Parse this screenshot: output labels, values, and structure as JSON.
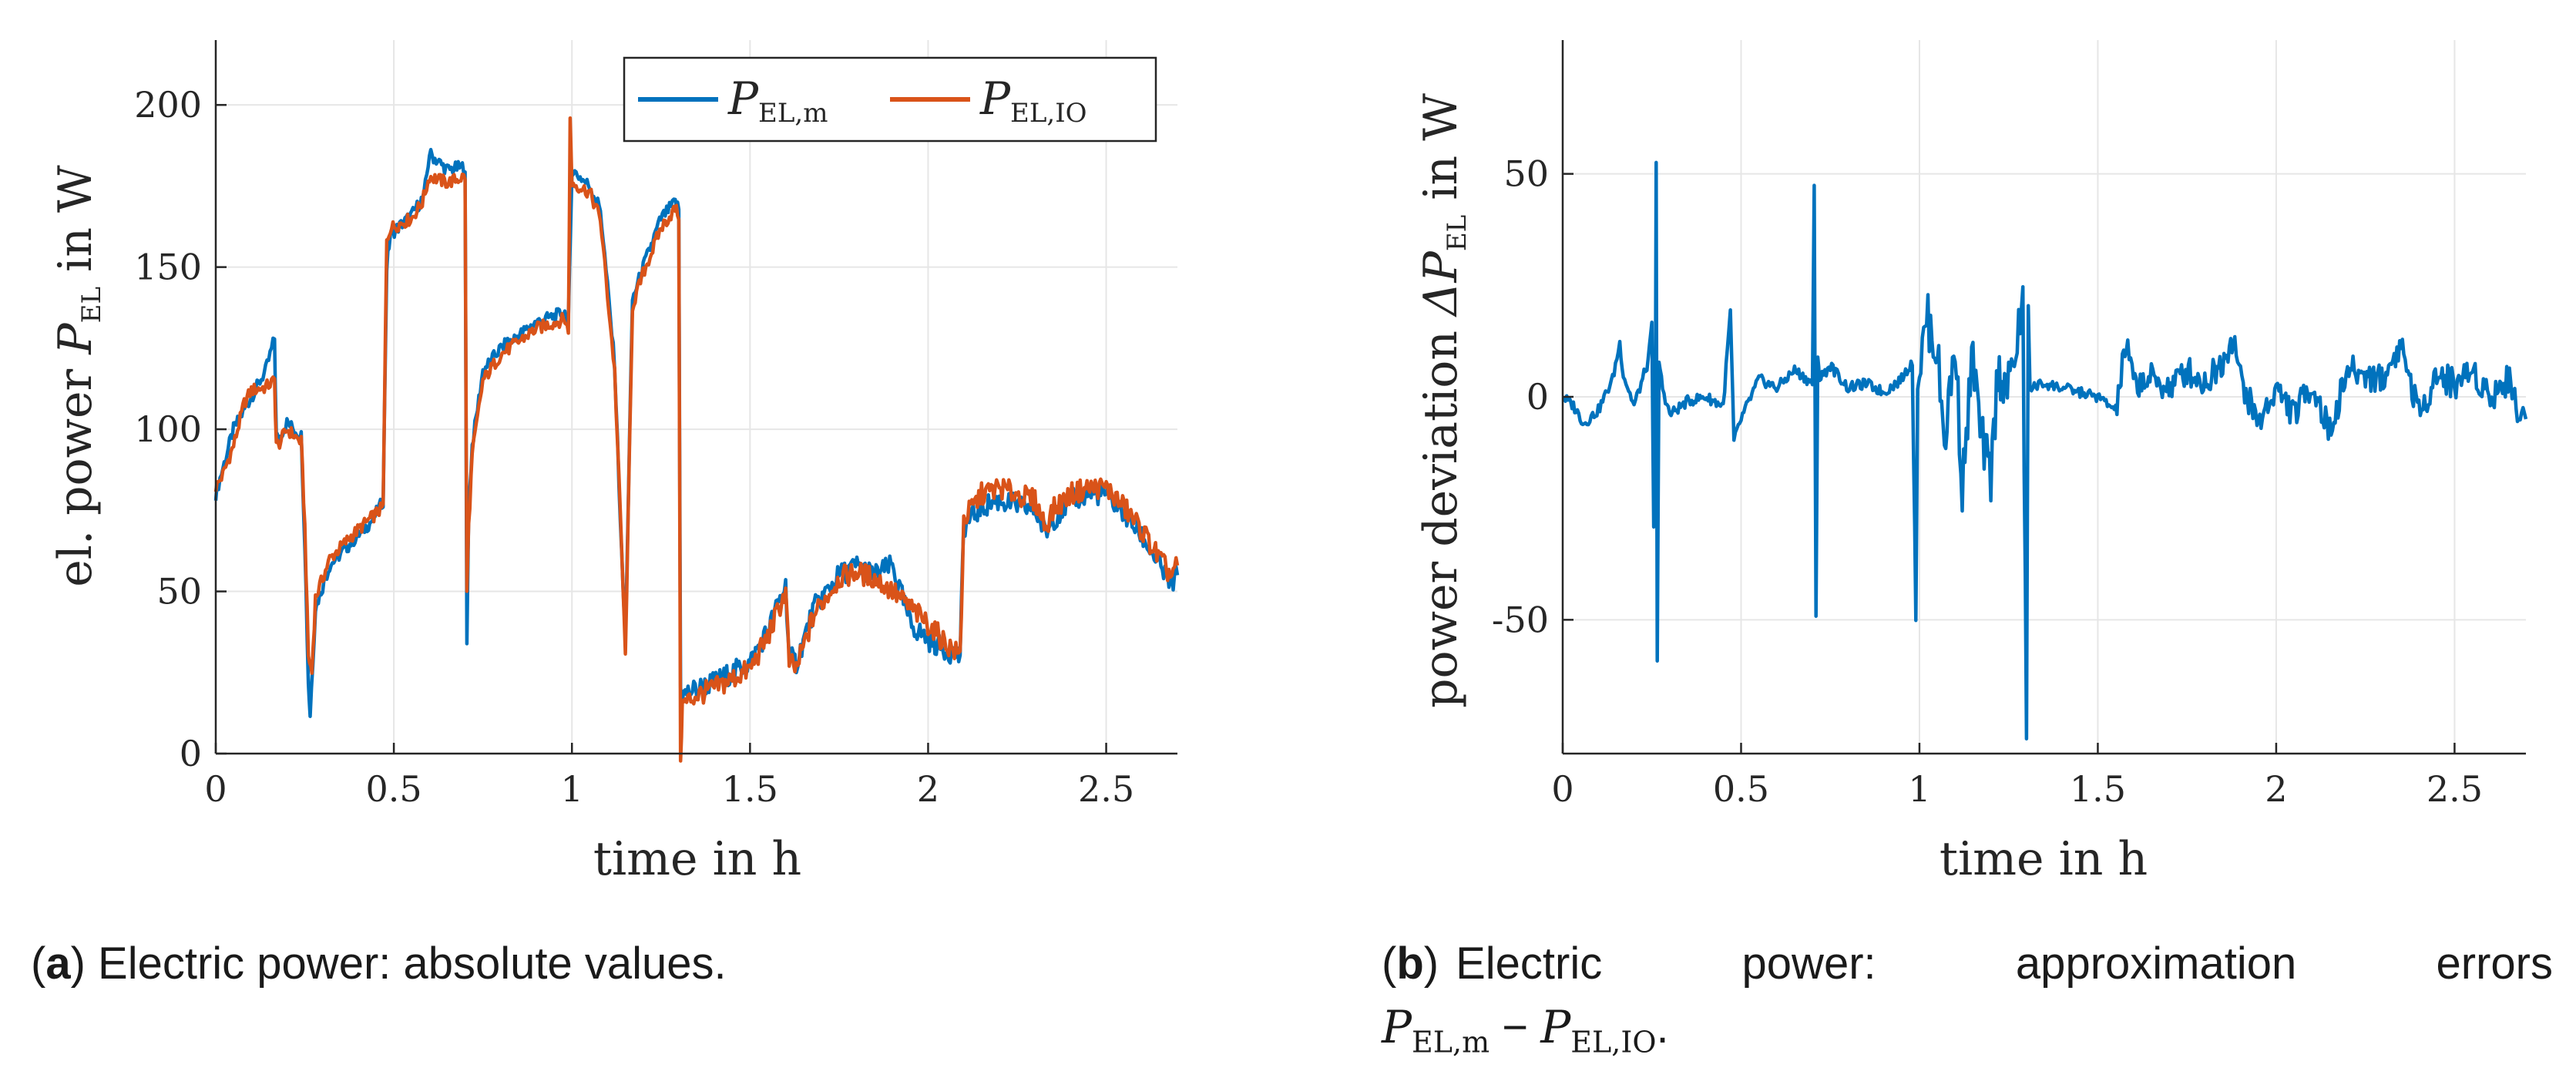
{
  "chart_data": [
    {
      "panel": "a",
      "type": "line",
      "xlabel": "time in h",
      "ylabel_text": "el. power",
      "ylabel_symbol": "P",
      "ylabel_sub": "EL",
      "ylabel_unit": "in W",
      "xlim": [
        0,
        2.7
      ],
      "ylim": [
        0,
        220
      ],
      "xticks": [
        0,
        0.5,
        1,
        1.5,
        2,
        2.5
      ],
      "xtick_labels": [
        "0",
        "0.5",
        "1",
        "1.5",
        "2",
        "2.5"
      ],
      "yticks": [
        0,
        50,
        100,
        150,
        200
      ],
      "ytick_labels": [
        "0",
        "50",
        "100",
        "150",
        "200"
      ],
      "grid": true,
      "legend_location": "top-right",
      "series": [
        {
          "name_symbol": "P",
          "name_sub": "EL,m",
          "color": "#0072BD",
          "x": [
            0,
            0.02,
            0.05,
            0.1,
            0.14,
            0.165,
            0.17,
            0.175,
            0.2,
            0.24,
            0.25,
            0.26,
            0.265,
            0.28,
            0.32,
            0.38,
            0.44,
            0.47,
            0.48,
            0.49,
            0.55,
            0.585,
            0.6,
            0.65,
            0.7,
            0.705,
            0.71,
            0.72,
            0.75,
            0.8,
            0.9,
            0.98,
            0.99,
            1.0,
            1.05,
            1.08,
            1.12,
            1.14,
            1.15,
            1.17,
            1.2,
            1.25,
            1.29,
            1.3,
            1.305,
            1.31,
            1.35,
            1.4,
            1.5,
            1.55,
            1.6,
            1.61,
            1.63,
            1.68,
            1.75,
            1.8,
            1.85,
            1.9,
            1.95,
            2.0,
            2.05,
            2.09,
            2.1,
            2.15,
            2.2,
            2.3,
            2.33,
            2.35,
            2.4,
            2.45,
            2.5,
            2.55,
            2.6,
            2.65,
            2.68,
            2.7
          ],
          "y": [
            80,
            88,
            100,
            110,
            118,
            128,
            98,
            97,
            102,
            98,
            65,
            22,
            12,
            45,
            58,
            65,
            72,
            78,
            150,
            160,
            166,
            172,
            185,
            180,
            181,
            33,
            75,
            95,
            118,
            125,
            133,
            136,
            132,
            180,
            175,
            168,
            120,
            60,
            35,
            140,
            150,
            165,
            170,
            168,
            20,
            18,
            20,
            22,
            28,
            38,
            52,
            30,
            28,
            45,
            55,
            58,
            55,
            58,
            40,
            35,
            32,
            30,
            70,
            76,
            78,
            75,
            68,
            72,
            78,
            80,
            80,
            74,
            67,
            58,
            52,
            55
          ]
        },
        {
          "name_symbol": "P",
          "name_sub": "EL,IO",
          "color": "#D95319",
          "x": [
            0,
            0.02,
            0.05,
            0.08,
            0.1,
            0.14,
            0.165,
            0.17,
            0.175,
            0.2,
            0.24,
            0.25,
            0.26,
            0.27,
            0.28,
            0.32,
            0.38,
            0.44,
            0.47,
            0.48,
            0.49,
            0.55,
            0.58,
            0.6,
            0.65,
            0.7,
            0.705,
            0.71,
            0.72,
            0.75,
            0.8,
            0.9,
            0.98,
            0.99,
            0.995,
            1.0,
            1.05,
            1.08,
            1.12,
            1.14,
            1.15,
            1.17,
            1.2,
            1.25,
            1.29,
            1.3,
            1.305,
            1.31,
            1.35,
            1.4,
            1.5,
            1.55,
            1.6,
            1.61,
            1.63,
            1.68,
            1.75,
            1.8,
            1.85,
            1.9,
            1.95,
            2.0,
            2.05,
            2.09,
            2.1,
            2.15,
            2.2,
            2.3,
            2.33,
            2.35,
            2.4,
            2.45,
            2.5,
            2.55,
            2.6,
            2.65,
            2.68,
            2.7
          ],
          "y": [
            82,
            86,
            95,
            108,
            112,
            113,
            115,
            96,
            95,
            100,
            96,
            70,
            30,
            25,
            48,
            60,
            67,
            73,
            76,
            158,
            162,
            165,
            170,
            178,
            176,
            178,
            50,
            70,
            92,
            115,
            123,
            131,
            134,
            130,
            195,
            176,
            173,
            165,
            118,
            62,
            30,
            138,
            148,
            162,
            168,
            166,
            0,
            15,
            18,
            20,
            26,
            36,
            50,
            28,
            26,
            43,
            54,
            56,
            54,
            50,
            45,
            40,
            34,
            30,
            72,
            80,
            82,
            78,
            70,
            75,
            80,
            82,
            82,
            76,
            69,
            60,
            55,
            58
          ]
        }
      ]
    },
    {
      "panel": "b",
      "type": "line",
      "xlabel": "time in h",
      "ylabel_text": "power deviation",
      "ylabel_symbol": "ΔP",
      "ylabel_sub": "EL",
      "ylabel_unit": "in W",
      "xlim": [
        0,
        2.7
      ],
      "ylim": [
        -80,
        80
      ],
      "xticks": [
        0,
        0.5,
        1,
        1.5,
        2,
        2.5
      ],
      "xtick_labels": [
        "0",
        "0.5",
        "1",
        "1.5",
        "2",
        "2.5"
      ],
      "yticks": [
        -50,
        0,
        50
      ],
      "ytick_labels": [
        "-50",
        "0",
        "50"
      ],
      "grid": true,
      "series": [
        {
          "name": "P_EL,m - P_EL,IO",
          "color": "#0072BD",
          "x": [
            0,
            0.03,
            0.06,
            0.1,
            0.14,
            0.16,
            0.17,
            0.2,
            0.24,
            0.25,
            0.255,
            0.26,
            0.262,
            0.265,
            0.27,
            0.28,
            0.3,
            0.35,
            0.4,
            0.45,
            0.47,
            0.48,
            0.5,
            0.55,
            0.6,
            0.65,
            0.7,
            0.705,
            0.71,
            0.715,
            0.72,
            0.75,
            0.8,
            0.85,
            0.9,
            0.95,
            0.98,
            0.99,
            0.995,
            1.0,
            1.02,
            1.05,
            1.07,
            1.1,
            1.12,
            1.15,
            1.17,
            1.2,
            1.22,
            1.25,
            1.29,
            1.3,
            1.305,
            1.31,
            1.35,
            1.4,
            1.45,
            1.5,
            1.55,
            1.58,
            1.6,
            1.65,
            1.7,
            1.75,
            1.8,
            1.85,
            1.88,
            1.9,
            1.95,
            2.0,
            2.05,
            2.1,
            2.15,
            2.2,
            2.3,
            2.35,
            2.4,
            2.45,
            2.5,
            2.55,
            2.6,
            2.65,
            2.68,
            2.7
          ],
          "y": [
            0,
            -2,
            -6,
            -3,
            4,
            12,
            5,
            -2,
            8,
            16,
            -30,
            4,
            53,
            -60,
            8,
            2,
            -4,
            -1,
            0,
            -2,
            19,
            -10,
            -5,
            4,
            2,
            6,
            3,
            47,
            -50,
            10,
            4,
            7,
            2,
            3,
            1,
            4,
            8,
            -49,
            2,
            5,
            18,
            10,
            -10,
            12,
            -20,
            10,
            -8,
            -18,
            6,
            2,
            20,
            -76,
            20,
            2,
            3,
            2,
            1,
            0,
            -3,
            12,
            3,
            4,
            2,
            6,
            3,
            8,
            14,
            4,
            -6,
            2,
            -4,
            3,
            -8,
            6,
            4,
            12,
            -4,
            5,
            3,
            6,
            0,
            4,
            -3,
            -5
          ]
        }
      ]
    }
  ],
  "legend": {
    "entries": [
      {
        "symbol": "P",
        "sub": "EL,m"
      },
      {
        "symbol": "P",
        "sub": "EL,IO"
      }
    ]
  },
  "captions": {
    "a": {
      "label": "a",
      "text": "Electric power: absolute values."
    },
    "b": {
      "label": "b",
      "line1": "Electric power:  approximation errors",
      "sym1": "P",
      "sub1": "EL,m",
      "minus": "−",
      "sym2": "P",
      "sub2": "EL,IO",
      "end": "."
    }
  },
  "colors": {
    "blue": "#0072BD",
    "orange": "#D95319",
    "grid": "#e6e6e6",
    "axis": "#262626"
  }
}
